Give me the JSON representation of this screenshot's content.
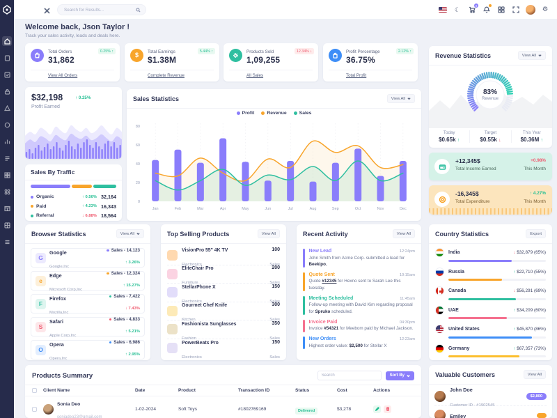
{
  "topbar": {
    "search_placeholder": "Search for Results...",
    "cart_badge": "0",
    "icons": [
      "close-icon",
      "search-icon",
      "us-flag-icon",
      "moon-icon",
      "cart-icon",
      "bell-icon",
      "grid-icon",
      "fullscreen-icon",
      "avatar",
      "settings-gear-icon"
    ]
  },
  "welcome": {
    "title": "Welcome back, Json Taylor !",
    "subtitle": "Track your sales activity, leads and deals here."
  },
  "stat_cards": [
    {
      "label": "Total Orders",
      "value": "31,862",
      "badge": "0.25% ↑",
      "trend": "up",
      "link": "View All Orders",
      "icon": "orders-bag-icon",
      "accent": "#8a7dfb"
    },
    {
      "label": "Total Earnings",
      "value": "$1.38M",
      "badge": "5.44% ↑",
      "trend": "up",
      "link": "Complete Revenue",
      "icon": "dollar-icon",
      "accent": "#f8a52c"
    },
    {
      "label": "Products Sold",
      "value": "1,09,255",
      "badge": "12.34% ↓",
      "trend": "down",
      "link": "All Sales",
      "icon": "products-gear-icon",
      "accent": "#2fbfa0"
    },
    {
      "label": "Profit Percentage",
      "value": "36.75%",
      "badge": "2.12% ↑",
      "trend": "up",
      "link": "Total Profit",
      "icon": "profit-bag-icon",
      "accent": "#3e8ef7"
    }
  ],
  "profit_card": {
    "value": "$32,198",
    "change": "↑ 0.25%",
    "label": "Profit Earned"
  },
  "sales_by_traffic": {
    "title": "Sales By Traffic",
    "items": [
      {
        "label": "Organic",
        "pct": "↑ 0.56%",
        "trend": "up",
        "value": "32,164",
        "color": "#8a7dfb"
      },
      {
        "label": "Paid",
        "pct": "↑ 4.23%",
        "trend": "up",
        "value": "16,343",
        "color": "#f8a52c"
      },
      {
        "label": "Referral",
        "pct": "↓ 6.88%",
        "trend": "down",
        "value": "18,564",
        "color": "#2fbfa0"
      }
    ]
  },
  "sales_statistics": {
    "title": "Sales Statistics",
    "view_all": "View All"
  },
  "revenue_statistics": {
    "title": "Revenue Statistics",
    "view_all": "View All",
    "gauge_value": "83%",
    "gauge_label": "Revenue",
    "stats": [
      {
        "label": "Today",
        "value": "$0.65k",
        "arrow": "↑",
        "trend": "up"
      },
      {
        "label": "Target",
        "value": "$0.55k",
        "arrow": "↓",
        "trend": "down"
      },
      {
        "label": "This Year",
        "value": "$0.36M",
        "arrow": "↑",
        "trend": "up"
      }
    ]
  },
  "income_card": {
    "value": "+12,345$",
    "label": "Total Income Earned",
    "pct": "+0.98%",
    "period": "This Month"
  },
  "expenditure_card": {
    "value": "-16,345$",
    "label": "Total Expenditure",
    "pct": "↑ 4.27%",
    "period": "This Month"
  },
  "browser_statistics": {
    "title": "Browser Statistics",
    "view_all": "View All",
    "items": [
      {
        "name": "Google",
        "company": "Google,Inc",
        "sales": "Sales - 14,123",
        "pct": "↑ 3.26%",
        "trend": "up",
        "dot": "#8a7dfb",
        "brand": "#8a7dfb",
        "tint": "#eceafe"
      },
      {
        "name": "Edge",
        "company": "Microsoft Corp,Inc",
        "sales": "Sales - 12,324",
        "pct": "↑ 15.27%",
        "trend": "up",
        "dot": "#f8a52c",
        "brand": "#f8a52c",
        "tint": "#fdf0da"
      },
      {
        "name": "Firefox",
        "company": "Mozilla,Inc",
        "sales": "Sales - 7,422",
        "pct": "↓ 7.43%",
        "trend": "down",
        "dot": "#2fbfa0",
        "brand": "#2fbfa0",
        "tint": "#def5ef"
      },
      {
        "name": "Safari",
        "company": "Apple Corp,Inc",
        "sales": "Sales - 4,833",
        "pct": "↑ 5.21%",
        "trend": "up",
        "dot": "#ef5a6f",
        "brand": "#ef5a6f",
        "tint": "#fde6e9"
      },
      {
        "name": "Opera",
        "company": "Opera,Inc",
        "sales": "Sales - 6,986",
        "pct": "↑ 2.95%",
        "trend": "up",
        "dot": "#3e8ef7",
        "brand": "#3e8ef7",
        "tint": "#e3eefe"
      }
    ]
  },
  "top_selling_products": {
    "title": "Top Selling Products",
    "view_all": "View All",
    "items": [
      {
        "name": "VisionPro 55\" 4K TV",
        "category": "Electronics",
        "qty": "100",
        "unit": "Sales",
        "thumb": "#ffd9b0"
      },
      {
        "name": "EliteChair Pro",
        "category": "Furniture",
        "qty": "200",
        "unit": "Sales",
        "thumb": "#fbd3e2"
      },
      {
        "name": "StellarPhone X",
        "category": "Electronics",
        "qty": "150",
        "unit": "Sales",
        "thumb": "#e2ddfa"
      },
      {
        "name": "Gourmet Chef Knife",
        "category": "Kitchen",
        "qty": "300",
        "unit": "Sales",
        "thumb": "#fdeab7"
      },
      {
        "name": "Fashionista Sunglasses",
        "category": "Fashion",
        "qty": "350",
        "unit": "Sales",
        "thumb": "#ece2c8"
      },
      {
        "name": "PowerBeats Pro",
        "category": "Electronics",
        "qty": "150",
        "unit": "Sales",
        "thumb": "#e5e0f6"
      }
    ]
  },
  "recent_activity": {
    "title": "Recent Activity",
    "view_all": "View All",
    "items": [
      {
        "title": "New Lead",
        "time": "12:24pm",
        "color": "#8a7dfb",
        "before": "John Smith from Acme Corp. submitted a lead for ",
        "strong": "Beekipo.",
        "after": ""
      },
      {
        "title": "Quote Sent",
        "time": "10:15am",
        "color": "#f8a52c",
        "before": "Quote ",
        "strong": "#12345",
        "after": " for Hexno sent to Sarah Lee this tuesday."
      },
      {
        "title": "Meeting Scheduled",
        "time": "11:45am",
        "color": "#2fbfa0",
        "before": "Follow-up meeting with David Kim regarding proposal for ",
        "strong": "Spruko",
        "after": " scheduled."
      },
      {
        "title": "Invoice Paid",
        "time": "04:30pm",
        "color": "#f5718f",
        "before": "Invoice ",
        "strong": "#54321",
        "after": " for Meebom paid by Michael Jackson."
      },
      {
        "title": "New Orders",
        "time": "12:23am",
        "color": "#3e8ef7",
        "before": "Highest order value: ",
        "strong": "$2,500",
        "after": " for Stellar X"
      }
    ]
  },
  "country_statistics": {
    "title": "Country Statistics",
    "export": "Export",
    "items": [
      {
        "name": "India",
        "arrow": "↓",
        "trend": "down",
        "amount": "$32,879 (65%)",
        "percent": 65,
        "color": "#8a7dfb",
        "flag": "india"
      },
      {
        "name": "Russia",
        "arrow": "↑",
        "trend": "up",
        "amount": "$22,710 (55%)",
        "percent": 55,
        "color": "#f8a52c",
        "flag": "russia"
      },
      {
        "name": "Canada",
        "arrow": "↓",
        "trend": "down",
        "amount": "$56,291 (69%)",
        "percent": 69,
        "color": "#2fbfa0",
        "flag": "canada"
      },
      {
        "name": "UAE",
        "arrow": "↑",
        "trend": "up",
        "amount": "$34,209 (60%)",
        "percent": 60,
        "color": "#f5718f",
        "flag": "uae"
      },
      {
        "name": "United States",
        "arrow": "↑",
        "trend": "up",
        "amount": "$45,870 (86%)",
        "percent": 86,
        "color": "#3e8ef7",
        "flag": "usa"
      },
      {
        "name": "Germany",
        "arrow": "↑",
        "trend": "up",
        "amount": "$67,357 (73%)",
        "percent": 73,
        "color": "#fcbe2d",
        "flag": "germany"
      }
    ]
  },
  "products_summary": {
    "title": "Products Summary",
    "search_placeholder": "Search",
    "sort_by": "Sort By",
    "columns": [
      "Client Name",
      "Date",
      "Product",
      "Transaction ID",
      "Status",
      "Cost",
      "Actions"
    ],
    "rows": [
      {
        "client": "Sonia Deo",
        "email": "soniadeo23@gmail.com",
        "date": "1-02-2024",
        "product": "Soft Toys",
        "transaction_id": "#1802769169",
        "status": "Delivered",
        "cost": "$3,278"
      }
    ]
  },
  "valuable_customers": {
    "title": "Valuable Customers",
    "view_all": "View All",
    "items": [
      {
        "name": "John Doe",
        "customer_id": "Customer ID - #1902545",
        "badge": "$2,800",
        "badge_color": "#8a7dfb"
      },
      {
        "name": "Emiley",
        "customer_id": "",
        "badge": "",
        "badge_color": "#f8a52c"
      }
    ]
  },
  "chart_data": [
    {
      "id": "sales_statistics",
      "type": "bar",
      "title": "Sales Statistics",
      "categories": [
        "Jan",
        "Feb",
        "Mar",
        "Apr",
        "May",
        "Jun",
        "Jul",
        "Aug",
        "Sep",
        "Oct",
        "Nov",
        "Dec"
      ],
      "series": [
        {
          "name": "Profit",
          "type": "bar",
          "color": "#8a7dfb",
          "values": [
            44,
            55,
            41,
            67,
            42,
            22,
            43,
            21,
            41,
            56,
            27,
            43
          ]
        },
        {
          "name": "Revenue",
          "type": "line",
          "color": "#f8a52c",
          "values": [
            30,
            27,
            46,
            30,
            22,
            45,
            36,
            64,
            52,
            59,
            36,
            39
          ]
        },
        {
          "name": "Sales",
          "type": "line",
          "color": "#2fbfa0",
          "values": [
            22,
            12,
            22,
            34,
            17,
            28,
            23,
            37,
            22,
            43,
            22,
            30
          ]
        }
      ],
      "xlabel": "",
      "ylabel": "",
      "ylim": [
        0,
        80
      ],
      "yticks": [
        0,
        20,
        40,
        60,
        80
      ],
      "grid": "vertical-dotted",
      "legend_position": "top"
    },
    {
      "id": "profit_mini",
      "type": "area",
      "color": "#8a7dfb",
      "area1": [
        34,
        40,
        36,
        46,
        42,
        36,
        48,
        42,
        38,
        50,
        44,
        40,
        46,
        38,
        42,
        50,
        42,
        36,
        46,
        40
      ],
      "area2": [
        22,
        28,
        24,
        33,
        30,
        25,
        35,
        30,
        27,
        37,
        32,
        29,
        34,
        27,
        30,
        36,
        30,
        25,
        33,
        28
      ],
      "bars": [
        10,
        14,
        8,
        16,
        20,
        12,
        17,
        22,
        14,
        18,
        24,
        16,
        12,
        20,
        26,
        18,
        14,
        22,
        16,
        24,
        28,
        20,
        16,
        24,
        18,
        14,
        22,
        26,
        18,
        24,
        16,
        20
      ]
    },
    {
      "id": "revenue_gauge",
      "type": "radial",
      "value": 83,
      "label": "Revenue",
      "colors": [
        "#8a7dfb",
        "#2fd2b1"
      ],
      "track_color": "#e9ebf4"
    },
    {
      "id": "sales_by_traffic",
      "type": "stacked-bar",
      "segments": [
        {
          "label": "Organic",
          "value": 32164,
          "color": "#8a7dfb"
        },
        {
          "label": "Paid",
          "value": 16343,
          "color": "#f8a52c"
        },
        {
          "label": "Referral",
          "value": 18564,
          "color": "#2fbfa0"
        }
      ]
    }
  ]
}
